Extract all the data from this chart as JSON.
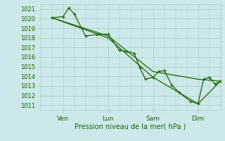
{
  "background_color": "#cce8e8",
  "grid_color": "#aacccc",
  "line_color": "#1a6600",
  "marker_color": "#1a6600",
  "xlabel": "Pression niveau de la mer( hPa )",
  "ylim": [
    1010.5,
    1021.5
  ],
  "yticks": [
    1011,
    1012,
    1013,
    1014,
    1015,
    1016,
    1017,
    1018,
    1019,
    1020,
    1021
  ],
  "xlim": [
    0,
    96
  ],
  "xtick_positions": [
    12,
    36,
    60,
    84
  ],
  "xtick_labels": [
    "Ven",
    "Lun",
    "Sam",
    "Dim"
  ],
  "line1_x": [
    6,
    12,
    15,
    18,
    24,
    30,
    36,
    42,
    46,
    50,
    53,
    56,
    60,
    63,
    66,
    70,
    74,
    80,
    84,
    87,
    90,
    93,
    96
  ],
  "line1_y": [
    1020.1,
    1020.2,
    1021.1,
    1020.5,
    1018.2,
    1018.35,
    1018.4,
    1016.7,
    1016.6,
    1016.4,
    1014.9,
    1013.7,
    1013.9,
    1014.5,
    1014.6,
    1013.1,
    1012.3,
    1011.4,
    1011.15,
    1013.7,
    1013.9,
    1013.2,
    1013.5
  ],
  "line2_x": [
    6,
    36,
    60,
    84,
    96
  ],
  "line2_y": [
    1020.1,
    1018.2,
    1014.5,
    1013.7,
    1013.5
  ],
  "line3_x": [
    6,
    36,
    60,
    84,
    96
  ],
  "line3_y": [
    1020.1,
    1018.0,
    1013.9,
    1011.15,
    1013.5
  ]
}
